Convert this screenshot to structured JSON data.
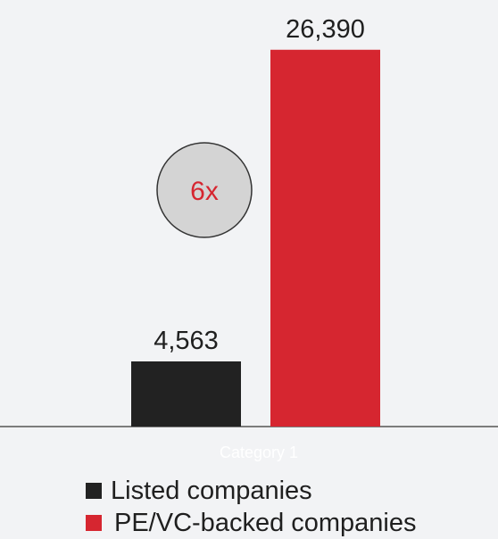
{
  "chart_data": {
    "type": "bar",
    "categories": [
      "Category 1"
    ],
    "series": [
      {
        "name": "Listed companies",
        "values": [
          4563
        ],
        "value_label": "4,563",
        "color": "#222222"
      },
      {
        "name": "PE/VC-backed companies",
        "values": [
          26390
        ],
        "value_label": "26,390",
        "color": "#d62630"
      }
    ],
    "ylim": [
      0,
      28000
    ],
    "grid": false,
    "legend_position": "bottom-left",
    "annotation": {
      "text": "6x",
      "shape": "circle",
      "text_color": "#d62630",
      "fill": "#d4d4d4",
      "stroke": "#333333"
    },
    "category_label_color": "#ffffff"
  }
}
